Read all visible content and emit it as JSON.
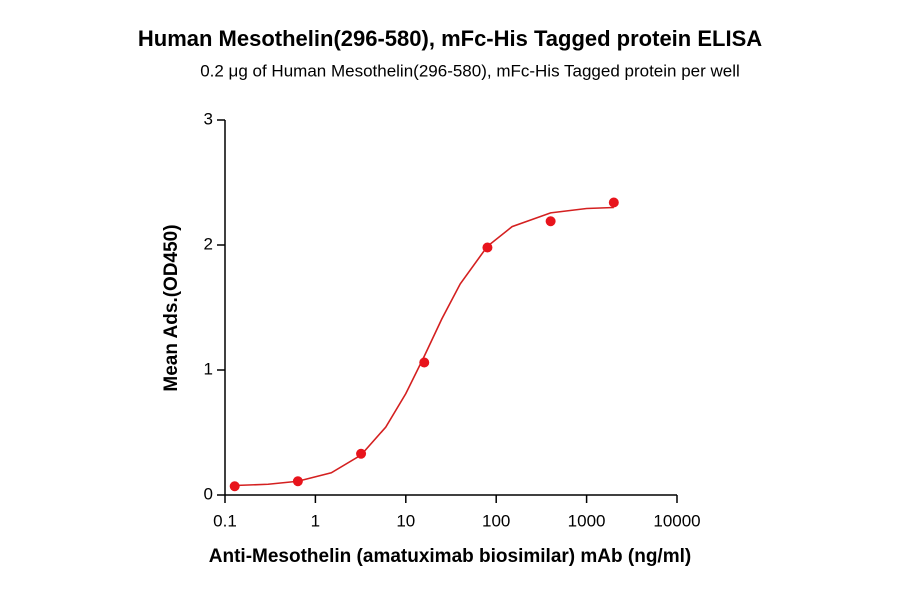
{
  "chart_data": {
    "type": "scatter",
    "title": "Human Mesothelin(296-580), mFc-His Tagged protein ELISA",
    "subtitle": "0.2 μg of Human Mesothelin(296-580), mFc-His Tagged protein per well",
    "x_label": "Anti-Mesothelin (amatuximab biosimilar) mAb (ng/ml)",
    "y_label": "Mean Ads.(OD450)",
    "x_scale": "log",
    "color": "#e8141c",
    "x": [
      0.128,
      0.64,
      3.2,
      16,
      80,
      400,
      2000
    ],
    "values": [
      0.07,
      0.11,
      0.33,
      1.06,
      1.98,
      2.19,
      2.34
    ],
    "fit": {
      "type": "line",
      "color": "#d42020",
      "x": [
        0.128,
        0.3,
        0.64,
        1.5,
        3.2,
        6,
        10,
        16,
        25,
        40,
        80,
        150,
        400,
        1000,
        2000
      ],
      "values": [
        0.076,
        0.086,
        0.11,
        0.178,
        0.32,
        0.543,
        0.811,
        1.11,
        1.408,
        1.689,
        1.99,
        2.147,
        2.257,
        2.292,
        2.3
      ]
    },
    "xlim": [
      0.1,
      10000
    ],
    "xticks": [
      0.1,
      1,
      10,
      100,
      1000,
      10000
    ],
    "ylim": [
      0,
      3
    ],
    "yticks": [
      0,
      1,
      2,
      3
    ]
  }
}
